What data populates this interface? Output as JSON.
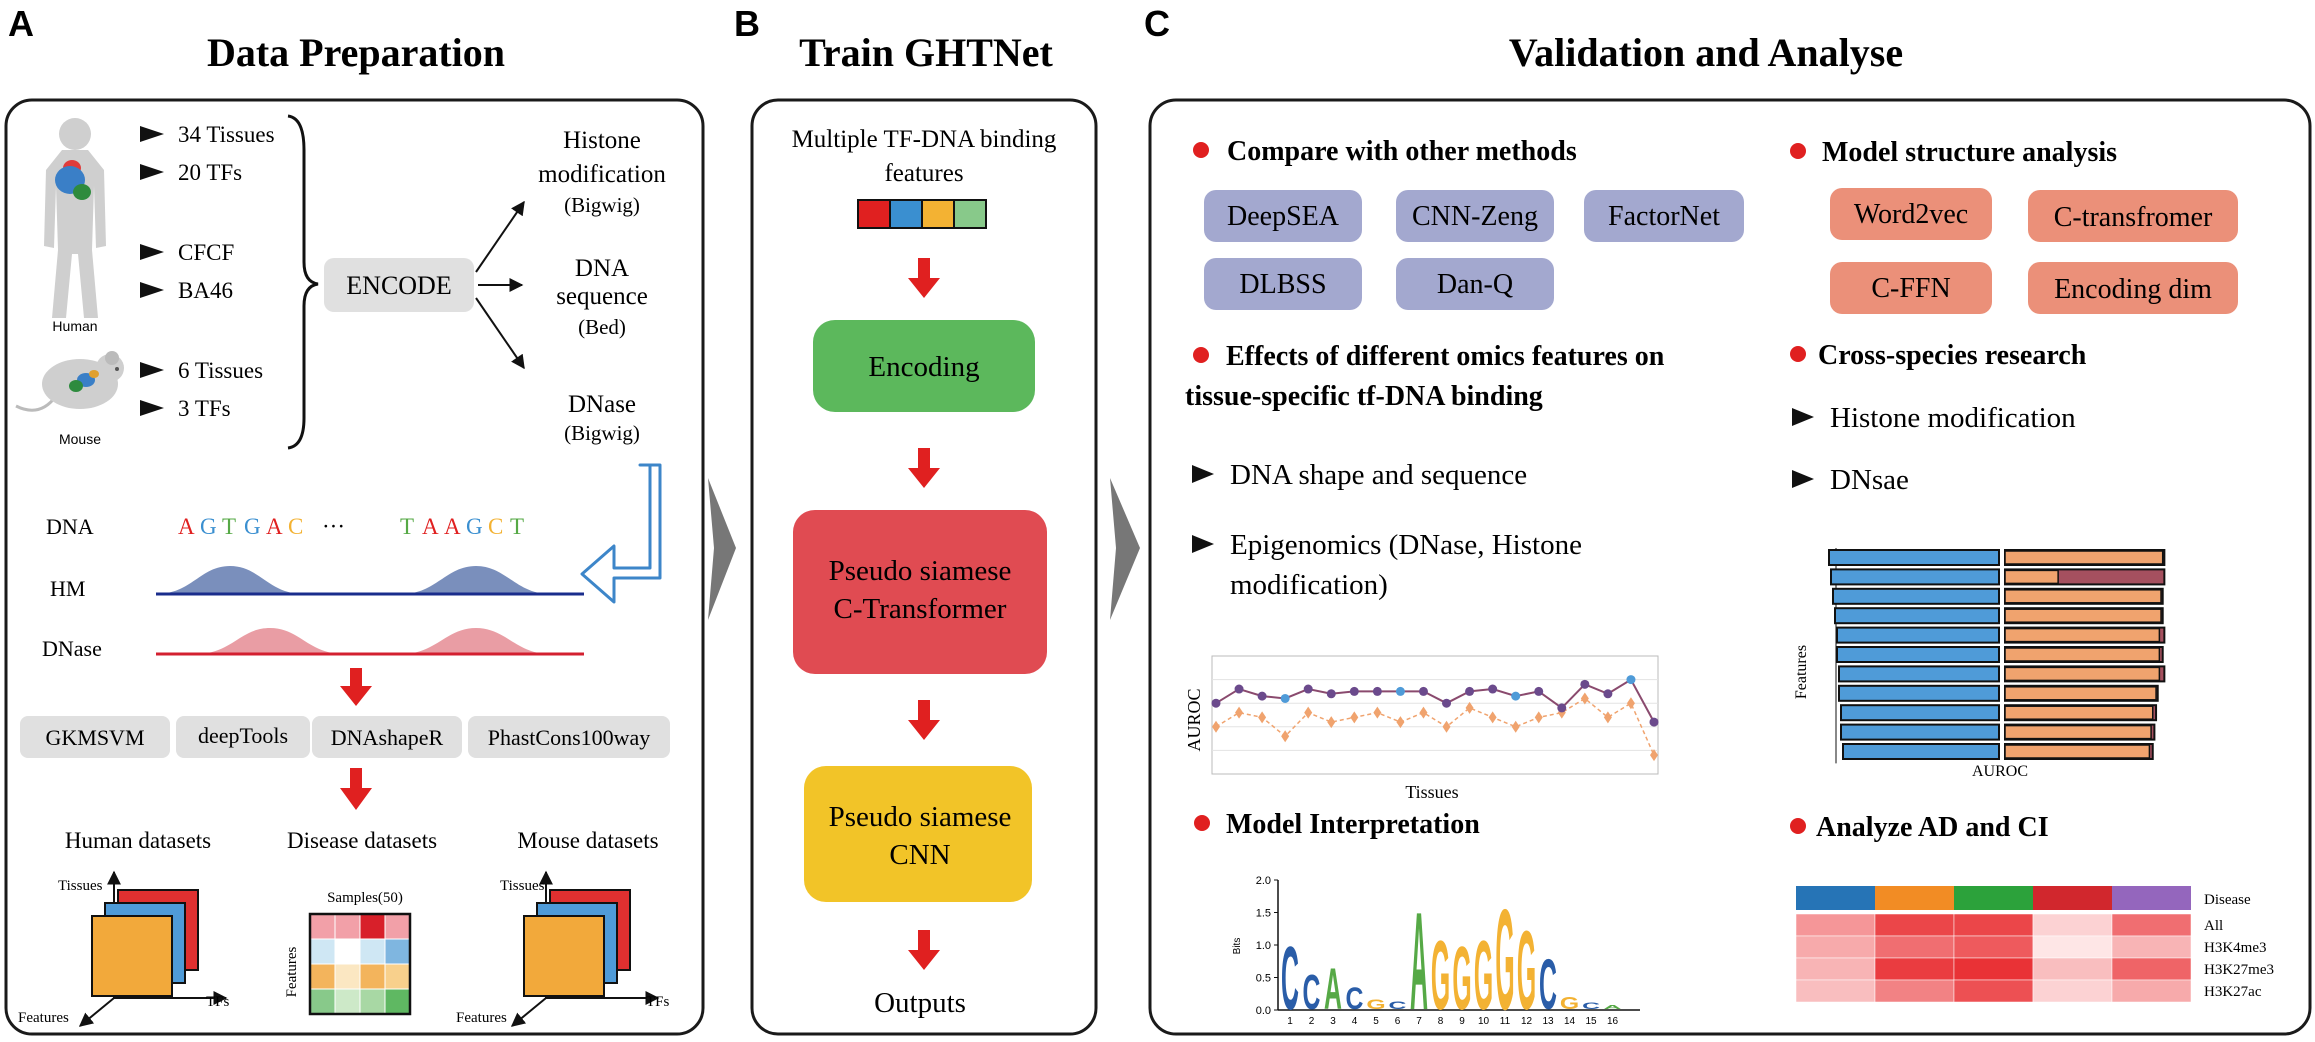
{
  "panels": {
    "a": {
      "letter": "A",
      "title": "Data Preparation",
      "human": {
        "label": "Human",
        "items": [
          "34 Tissues",
          "20 TFs",
          "CFCF",
          "BA46"
        ]
      },
      "mouse": {
        "label": "Mouse",
        "items": [
          "6 Tissues",
          "3 TFs"
        ]
      },
      "encode": "ENCODE",
      "outputs": [
        {
          "line1": "Histone",
          "line2": "modification",
          "line3": "(Bigwig)"
        },
        {
          "line1": "DNA",
          "line2": "sequence",
          "line3": "(Bed)"
        },
        {
          "line1": "DNase",
          "line2": "(Bigwig)"
        }
      ],
      "tracks": {
        "dna_label": "DNA",
        "dna_left": [
          "A",
          "G",
          "T",
          "G",
          "A",
          "C"
        ],
        "ellipsis": "···",
        "dna_right": [
          "T",
          "A",
          "A",
          "G",
          "C",
          "T"
        ],
        "hm_label": "HM",
        "dnase_label": "DNase"
      },
      "tools": [
        "GKMSVM",
        "deepTools",
        "DNAshapeR",
        "PhastCons100way"
      ],
      "datasets": {
        "human": {
          "title": "Human datasets",
          "tissues": "Tissues",
          "features": "Features",
          "tfs": "TFs"
        },
        "disease": {
          "title": "Disease datasets",
          "samples": "Samples(50)",
          "features": "Features"
        },
        "mouse": {
          "title": "Mouse datasets",
          "tissues": "Tissues",
          "features": "Features",
          "tfs": "TFs"
        }
      }
    },
    "b": {
      "letter": "B",
      "title": "Train GHTNet",
      "input_line1": "Multiple TF-DNA binding",
      "input_line2": "features",
      "encoding": "Encoding",
      "transformer_line1": "Pseudo siamese",
      "transformer_line2": "C-Transformer",
      "cnn_line1": "Pseudo siamese",
      "cnn_line2": "CNN",
      "outputs": "Outputs"
    },
    "c": {
      "letter": "C",
      "title": "Validation and Analyse",
      "compare": {
        "heading": "Compare with other methods",
        "methods": [
          "DeepSEA",
          "CNN-Zeng",
          "FactorNet",
          "DLBSS",
          "Dan-Q"
        ]
      },
      "structure": {
        "heading": "Model structure analysis",
        "items": [
          "Word2vec",
          "C-transfromer",
          "C-FFN",
          "Encoding dim"
        ]
      },
      "omics": {
        "heading_line1": "Effects of different omics features on",
        "heading_line2": "tissue-specific tf-DNA binding",
        "bullets": [
          {
            "line1": "DNA shape and sequence"
          },
          {
            "line1": "Epigenomics (DNase, Histone",
            "line2": "modification)"
          }
        ]
      },
      "cross": {
        "heading": "Cross-species research",
        "bullets": [
          "Histone modification",
          "DNsae"
        ]
      },
      "interpretation": {
        "heading": "Model Interpretation"
      },
      "ad_ci": {
        "heading": "Analyze AD and CI",
        "disease_label": "Disease",
        "row_labels": [
          "All",
          "H3K4me3",
          "H3K27me3",
          "H3K27ac"
        ]
      }
    }
  },
  "chart_data": [
    {
      "type": "line",
      "xlabel": "Tissues",
      "ylabel": "AUROC",
      "x": [
        1,
        2,
        3,
        4,
        5,
        6,
        7,
        8,
        9,
        10,
        11,
        12,
        13,
        14,
        15,
        16,
        17,
        18,
        19,
        20
      ],
      "series": [
        {
          "values": [
            0.8,
            0.86,
            0.83,
            0.82,
            0.86,
            0.84,
            0.85,
            0.85,
            0.85,
            0.85,
            0.8,
            0.85,
            0.86,
            0.83,
            0.85,
            0.78,
            0.88,
            0.84,
            0.9,
            0.72
          ]
        },
        {
          "values": [
            0.7,
            0.76,
            0.74,
            0.66,
            0.76,
            0.72,
            0.74,
            0.76,
            0.72,
            0.76,
            0.7,
            0.78,
            0.74,
            0.7,
            0.74,
            0.76,
            0.82,
            0.74,
            0.8,
            0.58
          ]
        }
      ]
    },
    {
      "type": "bar",
      "xlabel": "AUROC",
      "ylabel": "Features",
      "series": [
        {
          "values": [
            0.85,
            0.84,
            0.83,
            0.82,
            0.81,
            0.81,
            0.8,
            0.8,
            0.79,
            0.79,
            0.78
          ]
        },
        {
          "values": [
            0.95,
            0.32,
            0.94,
            0.94,
            0.93,
            0.93,
            0.93,
            0.91,
            0.89,
            0.88,
            0.87
          ]
        },
        {
          "values": [
            0.96,
            0.96,
            0.95,
            0.95,
            0.96,
            0.95,
            0.96,
            0.92,
            0.91,
            0.9,
            0.89
          ]
        }
      ]
    },
    {
      "type": "bar",
      "ylabel": "Bits",
      "ylim": [
        0,
        2.0
      ],
      "y_ticks": [
        "0.0",
        "0.5",
        "1.0",
        "1.5",
        "2.0"
      ],
      "positions": [
        "1",
        "2",
        "3",
        "4",
        "5",
        "6",
        "7",
        "8",
        "9",
        "10",
        "11",
        "12",
        "13",
        "14",
        "15",
        "16"
      ],
      "letters": [
        "C",
        "C",
        "A",
        "C",
        "G",
        "C",
        "A",
        "G",
        "G",
        "G",
        "G",
        "G",
        "C",
        "G",
        "C",
        "A"
      ],
      "values": [
        1.0,
        0.55,
        0.65,
        0.35,
        0.15,
        0.12,
        1.55,
        1.1,
        1.0,
        1.1,
        1.6,
        1.25,
        0.8,
        0.2,
        0.1,
        0.05
      ]
    },
    {
      "type": "heatmap",
      "rows": [
        "All",
        "H3K4me3",
        "H3K27me3",
        "H3K27ac"
      ],
      "values": [
        [
          0.45,
          0.85,
          0.85,
          0.15,
          0.65
        ],
        [
          0.35,
          0.65,
          0.75,
          0.05,
          0.3
        ],
        [
          0.3,
          0.9,
          0.95,
          0.25,
          0.7
        ],
        [
          0.25,
          0.55,
          0.8,
          0.15,
          0.35
        ]
      ]
    }
  ],
  "colors": {
    "red": "#e02020",
    "dna_a": "#e02020",
    "dna_g": "#3a8fd0",
    "dna_t": "#56a946",
    "dna_c": "#f3b233",
    "method_pill": "#a3a8cf",
    "structure_pill": "#eb9079",
    "encoding": "#5cb85c",
    "transformer": "#e04b52",
    "cnn": "#f2c428",
    "hm_fill": "#4e6aa6",
    "dnase_fill": "#e27c85",
    "blue_bar": "#4f9bd8",
    "orange_bar": "#f0a36e",
    "maroon_bar": "#a5505f",
    "disease_colors": [
      "#2674b6",
      "#f28c24",
      "#2ca23b",
      "#d1272d",
      "#9466bd"
    ]
  }
}
